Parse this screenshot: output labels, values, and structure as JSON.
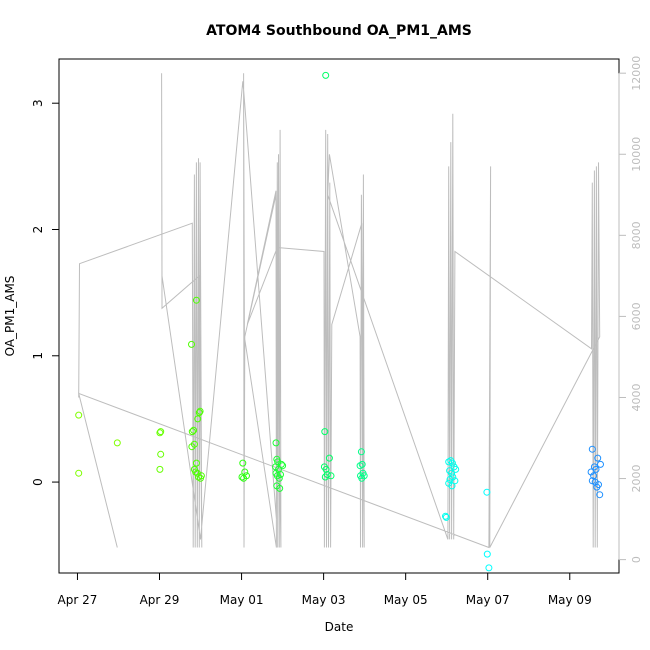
{
  "chart_data": {
    "type": "scatter",
    "title": "ATOM4 Southbound OA_PM1_AMS",
    "xlabel": "Date",
    "ylabel": "OA_PM1_AMS",
    "x_tick_labels": [
      "Apr 27",
      "Apr 29",
      "May 01",
      "May 03",
      "May 05",
      "May 07",
      "May 09"
    ],
    "x_tick_values": [
      27,
      29,
      31,
      33,
      35,
      37,
      39
    ],
    "xlim": [
      26.55,
      40.2
    ],
    "ylim": [
      -0.72,
      3.35
    ],
    "y_ticks": [
      0,
      1,
      2,
      3
    ],
    "y2_ticks": [
      0,
      2000,
      4000,
      6000,
      8000,
      10000,
      12000
    ],
    "y2lim": [
      -330,
      12350
    ],
    "scatter_points": [
      {
        "x": 27.03,
        "y": 0.53,
        "color": "#7fff00"
      },
      {
        "x": 27.03,
        "y": 0.07,
        "color": "#7fff00"
      },
      {
        "x": 27.97,
        "y": 0.31,
        "color": "#7fff00"
      },
      {
        "x": 29.01,
        "y": 0.39,
        "color": "#66ff00"
      },
      {
        "x": 29.03,
        "y": 0.4,
        "color": "#66ff00"
      },
      {
        "x": 29.03,
        "y": 0.22,
        "color": "#66ff00"
      },
      {
        "x": 29.01,
        "y": 0.1,
        "color": "#66ff00"
      },
      {
        "x": 29.78,
        "y": 1.09,
        "color": "#4dff00"
      },
      {
        "x": 29.9,
        "y": 1.44,
        "color": "#4dff00"
      },
      {
        "x": 29.8,
        "y": 0.4,
        "color": "#4dff00"
      },
      {
        "x": 29.83,
        "y": 0.41,
        "color": "#4dff00"
      },
      {
        "x": 29.79,
        "y": 0.28,
        "color": "#4dff00"
      },
      {
        "x": 29.85,
        "y": 0.3,
        "color": "#4dff00"
      },
      {
        "x": 29.93,
        "y": 0.5,
        "color": "#4dff00"
      },
      {
        "x": 29.97,
        "y": 0.55,
        "color": "#4dff00"
      },
      {
        "x": 29.99,
        "y": 0.56,
        "color": "#4dff00"
      },
      {
        "x": 29.9,
        "y": 0.15,
        "color": "#4dff00"
      },
      {
        "x": 29.85,
        "y": 0.1,
        "color": "#4dff00"
      },
      {
        "x": 29.88,
        "y": 0.08,
        "color": "#4dff00"
      },
      {
        "x": 29.92,
        "y": 0.07,
        "color": "#4dff00"
      },
      {
        "x": 29.95,
        "y": 0.04,
        "color": "#4dff00"
      },
      {
        "x": 30.0,
        "y": 0.03,
        "color": "#4dff00"
      },
      {
        "x": 30.02,
        "y": 0.05,
        "color": "#4dff00"
      },
      {
        "x": 31.03,
        "y": 0.15,
        "color": "#2dff11"
      },
      {
        "x": 31.08,
        "y": 0.08,
        "color": "#2dff11"
      },
      {
        "x": 31.05,
        "y": 0.03,
        "color": "#2dff11"
      },
      {
        "x": 31.12,
        "y": 0.05,
        "color": "#2dff11"
      },
      {
        "x": 31.01,
        "y": 0.04,
        "color": "#2dff11"
      },
      {
        "x": 31.84,
        "y": 0.31,
        "color": "#1aff33"
      },
      {
        "x": 31.86,
        "y": 0.18,
        "color": "#1aff33"
      },
      {
        "x": 31.88,
        "y": 0.16,
        "color": "#1aff33"
      },
      {
        "x": 31.83,
        "y": 0.12,
        "color": "#1aff33"
      },
      {
        "x": 31.9,
        "y": 0.1,
        "color": "#1aff33"
      },
      {
        "x": 31.84,
        "y": 0.07,
        "color": "#1aff33"
      },
      {
        "x": 31.87,
        "y": 0.05,
        "color": "#1aff33"
      },
      {
        "x": 31.92,
        "y": 0.03,
        "color": "#1aff33"
      },
      {
        "x": 31.95,
        "y": 0.06,
        "color": "#1aff33"
      },
      {
        "x": 31.97,
        "y": 0.14,
        "color": "#1aff33"
      },
      {
        "x": 32.0,
        "y": 0.13,
        "color": "#1aff33"
      },
      {
        "x": 31.86,
        "y": -0.03,
        "color": "#1aff33"
      },
      {
        "x": 31.93,
        "y": -0.05,
        "color": "#1aff33"
      },
      {
        "x": 33.05,
        "y": 3.22,
        "color": "#00ff66"
      },
      {
        "x": 33.03,
        "y": 0.4,
        "color": "#00ff66"
      },
      {
        "x": 33.14,
        "y": 0.19,
        "color": "#00ff66"
      },
      {
        "x": 33.02,
        "y": 0.12,
        "color": "#00ff66"
      },
      {
        "x": 33.06,
        "y": 0.1,
        "color": "#00ff66"
      },
      {
        "x": 33.09,
        "y": 0.06,
        "color": "#00ff66"
      },
      {
        "x": 33.04,
        "y": 0.04,
        "color": "#00ff66"
      },
      {
        "x": 33.18,
        "y": 0.05,
        "color": "#00ff66"
      },
      {
        "x": 33.92,
        "y": 0.24,
        "color": "#00ff88"
      },
      {
        "x": 33.94,
        "y": 0.14,
        "color": "#00ff88"
      },
      {
        "x": 33.89,
        "y": 0.13,
        "color": "#00ff88"
      },
      {
        "x": 33.96,
        "y": 0.07,
        "color": "#00ff88"
      },
      {
        "x": 33.9,
        "y": 0.05,
        "color": "#00ff88"
      },
      {
        "x": 33.93,
        "y": 0.03,
        "color": "#00ff88"
      },
      {
        "x": 33.99,
        "y": 0.05,
        "color": "#00ff88"
      },
      {
        "x": 36.05,
        "y": 0.16,
        "color": "#00ffee"
      },
      {
        "x": 36.1,
        "y": 0.17,
        "color": "#00ffee"
      },
      {
        "x": 36.14,
        "y": 0.15,
        "color": "#00ffee"
      },
      {
        "x": 36.18,
        "y": 0.12,
        "color": "#00ffee"
      },
      {
        "x": 36.22,
        "y": 0.1,
        "color": "#00ffee"
      },
      {
        "x": 36.07,
        "y": 0.09,
        "color": "#00ffee"
      },
      {
        "x": 36.12,
        "y": 0.07,
        "color": "#00ffee"
      },
      {
        "x": 36.15,
        "y": 0.04,
        "color": "#00ffee"
      },
      {
        "x": 36.08,
        "y": 0.02,
        "color": "#00ffee"
      },
      {
        "x": 36.2,
        "y": 0.01,
        "color": "#00ffee"
      },
      {
        "x": 36.05,
        "y": -0.01,
        "color": "#00ffee"
      },
      {
        "x": 36.13,
        "y": -0.03,
        "color": "#00ffee"
      },
      {
        "x": 35.97,
        "y": -0.27,
        "color": "#00ffee"
      },
      {
        "x": 35.99,
        "y": -0.28,
        "color": "#00ffee"
      },
      {
        "x": 36.98,
        "y": -0.08,
        "color": "#00ffff"
      },
      {
        "x": 36.99,
        "y": -0.57,
        "color": "#00ffff"
      },
      {
        "x": 37.03,
        "y": -0.68,
        "color": "#00ffff"
      },
      {
        "x": 39.55,
        "y": 0.26,
        "color": "#1e90ff"
      },
      {
        "x": 39.68,
        "y": 0.19,
        "color": "#1e90ff"
      },
      {
        "x": 39.75,
        "y": 0.14,
        "color": "#1e90ff"
      },
      {
        "x": 39.6,
        "y": 0.12,
        "color": "#1e90ff"
      },
      {
        "x": 39.64,
        "y": 0.1,
        "color": "#1e90ff"
      },
      {
        "x": 39.52,
        "y": 0.08,
        "color": "#1e90ff"
      },
      {
        "x": 39.58,
        "y": 0.05,
        "color": "#1e90ff"
      },
      {
        "x": 39.55,
        "y": 0.01,
        "color": "#1e90ff"
      },
      {
        "x": 39.62,
        "y": 0.0,
        "color": "#1e90ff"
      },
      {
        "x": 39.7,
        "y": -0.02,
        "color": "#1e90ff"
      },
      {
        "x": 39.66,
        "y": -0.04,
        "color": "#1e90ff"
      },
      {
        "x": 39.73,
        "y": -0.1,
        "color": "#1e90ff"
      }
    ],
    "altitude_track": [
      [
        27.03,
        4000
      ],
      [
        27.05,
        7300
      ],
      [
        29.8,
        8300
      ],
      [
        29.82,
        300
      ],
      [
        29.85,
        9500
      ],
      [
        29.87,
        300
      ],
      [
        29.9,
        9800
      ],
      [
        29.92,
        300
      ],
      [
        29.95,
        9900
      ],
      [
        29.97,
        300
      ],
      [
        29.99,
        9800
      ],
      [
        30.03,
        300
      ],
      [
        29.97,
        7000
      ],
      [
        29.06,
        6200
      ],
      [
        29.05,
        12000
      ],
      [
        29.06,
        7000
      ],
      [
        30.0,
        500
      ],
      [
        31.03,
        11800
      ],
      [
        31.05,
        11600
      ],
      [
        31.85,
        1000
      ],
      [
        31.87,
        9800
      ],
      [
        31.88,
        300
      ],
      [
        31.9,
        10000
      ],
      [
        31.92,
        300
      ],
      [
        31.94,
        10600
      ],
      [
        31.96,
        300
      ],
      [
        31.84,
        9000
      ],
      [
        31.08,
        5500
      ],
      [
        31.06,
        300
      ],
      [
        31.05,
        12000
      ],
      [
        31.07,
        5500
      ],
      [
        31.85,
        300
      ],
      [
        31.84,
        9100
      ],
      [
        31.14,
        5800
      ],
      [
        31.87,
        7700
      ],
      [
        33.01,
        7600
      ],
      [
        33.02,
        300
      ],
      [
        33.05,
        10600
      ],
      [
        33.07,
        300
      ],
      [
        33.1,
        10500
      ],
      [
        33.12,
        300
      ],
      [
        33.15,
        9300
      ],
      [
        33.17,
        300
      ],
      [
        33.2,
        5800
      ],
      [
        33.93,
        8300
      ],
      [
        33.95,
        300
      ],
      [
        33.97,
        9500
      ],
      [
        33.99,
        300
      ],
      [
        33.92,
        9000
      ],
      [
        33.9,
        300
      ],
      [
        33.89,
        5500
      ],
      [
        33.14,
        10000
      ],
      [
        33.1,
        9000
      ],
      [
        36.03,
        500
      ],
      [
        36.05,
        9700
      ],
      [
        36.07,
        500
      ],
      [
        36.1,
        10300
      ],
      [
        36.12,
        500
      ],
      [
        36.15,
        11000
      ],
      [
        36.17,
        500
      ],
      [
        36.2,
        7600
      ],
      [
        39.53,
        5200
      ],
      [
        39.55,
        9300
      ],
      [
        39.57,
        300
      ],
      [
        39.6,
        9600
      ],
      [
        39.62,
        300
      ],
      [
        39.65,
        9700
      ],
      [
        39.67,
        300
      ],
      [
        39.7,
        9800
      ],
      [
        39.73,
        5500
      ],
      [
        37.05,
        300
      ],
      [
        37.07,
        9700
      ],
      [
        37.03,
        300
      ],
      [
        27.03,
        4100
      ],
      [
        27.97,
        300
      ]
    ]
  }
}
